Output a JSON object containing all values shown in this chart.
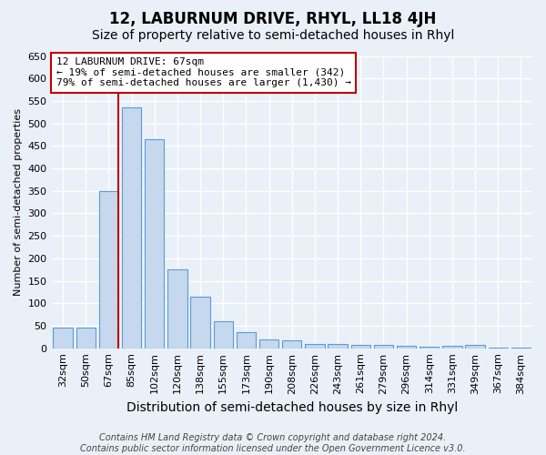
{
  "title": "12, LABURNUM DRIVE, RHYL, LL18 4JH",
  "subtitle": "Size of property relative to semi-detached houses in Rhyl",
  "xlabel": "Distribution of semi-detached houses by size in Rhyl",
  "ylabel": "Number of semi-detached properties",
  "categories": [
    "32sqm",
    "50sqm",
    "67sqm",
    "85sqm",
    "102sqm",
    "120sqm",
    "138sqm",
    "155sqm",
    "173sqm",
    "190sqm",
    "208sqm",
    "226sqm",
    "243sqm",
    "261sqm",
    "279sqm",
    "296sqm",
    "314sqm",
    "331sqm",
    "349sqm",
    "367sqm",
    "384sqm"
  ],
  "values": [
    45,
    45,
    350,
    535,
    465,
    175,
    115,
    60,
    35,
    20,
    17,
    10,
    10,
    8,
    7,
    5,
    3,
    5,
    8,
    2,
    1
  ],
  "bar_color": "#c5d8ed",
  "bar_edge_color": "#5b9bd5",
  "highlight_index": 2,
  "highlight_line_color": "#c00000",
  "ylim": [
    0,
    650
  ],
  "yticks": [
    0,
    50,
    100,
    150,
    200,
    250,
    300,
    350,
    400,
    450,
    500,
    550,
    600,
    650
  ],
  "annotation_line1": "12 LABURNUM DRIVE: 67sqm",
  "annotation_line2": "← 19% of semi-detached houses are smaller (342)",
  "annotation_line3": "79% of semi-detached houses are larger (1,430) →",
  "annotation_box_color": "#ffffff",
  "annotation_box_edge_color": "#c00000",
  "footer_text": "Contains HM Land Registry data © Crown copyright and database right 2024.\nContains public sector information licensed under the Open Government Licence v3.0.",
  "background_color": "#eaf0f8",
  "plot_background_color": "#eaf0f8",
  "grid_color": "#ffffff",
  "title_fontsize": 12,
  "subtitle_fontsize": 10,
  "xlabel_fontsize": 10,
  "ylabel_fontsize": 8,
  "tick_fontsize": 8,
  "annotation_fontsize": 8,
  "footer_fontsize": 7
}
